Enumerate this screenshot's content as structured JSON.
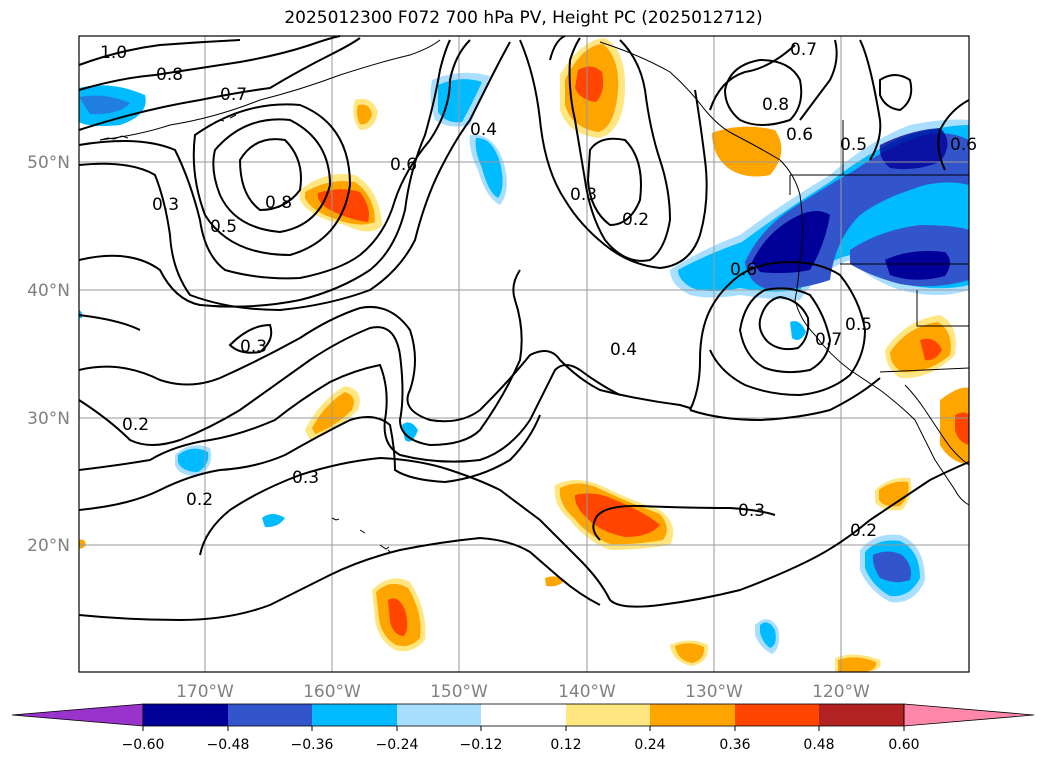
{
  "title": "2025012300 F072 700 hPa PV, Height PC (2025012712)",
  "lat_labels": [
    "50°N",
    "40°N",
    "30°N",
    "20°N"
  ],
  "lon_labels": [
    "170°W",
    "160°W",
    "150°W",
    "140°W",
    "130°W",
    "120°W"
  ],
  "colorbar": {
    "ticks": [
      "−0.60",
      "−0.48",
      "−0.36",
      "−0.24",
      "−0.12",
      "0.12",
      "0.24",
      "0.36",
      "0.48",
      "0.60"
    ],
    "colors": [
      "#9933cc",
      "#000099",
      "#3355cc",
      "#00bbff",
      "#aadeff",
      "#ffffff",
      "#ffe680",
      "#ffa500",
      "#ff4500",
      "#b22222",
      "#ff88aa"
    ]
  },
  "contour_labels": [
    "1.0",
    "0.8",
    "0.7",
    "0.3",
    "0.5",
    "0.8",
    "0.6",
    "0.4",
    "0.3",
    "0.2",
    "0.7",
    "0.8",
    "0.6",
    "0.5",
    "0.6",
    "0.6",
    "0.7",
    "0.5",
    "0.3",
    "0.4",
    "0.2",
    "0.3",
    "0.2",
    "0.3",
    "0.2"
  ]
}
